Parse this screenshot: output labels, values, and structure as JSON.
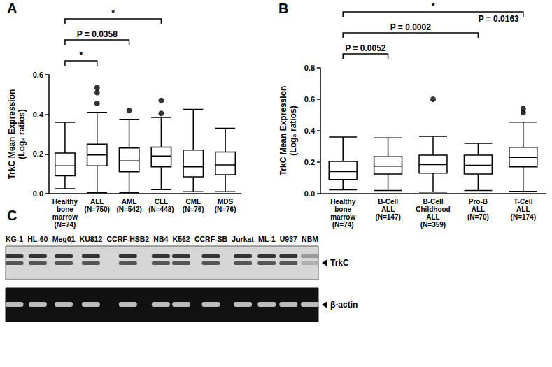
{
  "chart_data": [
    {
      "type": "boxplot",
      "title": "A",
      "ylabel": "TrkC Mean Expression\n(Log₂ ratios)",
      "categories": [
        "Healthy\nbone\nmarrow\n(N=74)",
        "ALL\n(N=750)",
        "AML\n(N=542)",
        "CLL\n(N=448)",
        "CML\n(N=76)",
        "MDS\n(N=76)"
      ],
      "values": [
        [
          0.025,
          0.09,
          0.14,
          0.205,
          0.36
        ],
        [
          0.005,
          0.14,
          0.195,
          0.25,
          0.41
        ],
        [
          0.005,
          0.11,
          0.165,
          0.23,
          0.375
        ],
        [
          0.02,
          0.135,
          0.19,
          0.235,
          0.385
        ],
        [
          0.01,
          0.085,
          0.135,
          0.22,
          0.425
        ],
        [
          0.01,
          0.095,
          0.145,
          0.21,
          0.33
        ]
      ],
      "outliers": [
        [],
        [
          0.535,
          0.51,
          0.455
        ],
        [
          0.42
        ],
        [
          0.47,
          0.405
        ],
        [],
        []
      ],
      "color": "#000000",
      "marker": "circle",
      "ylim": [
        0,
        0.6
      ],
      "yticks": [
        {
          "value": 0,
          "label": "0.0"
        },
        0.2,
        0.4,
        0.6
      ],
      "annotations": [
        {
          "from": 0,
          "to": 1,
          "text": "*"
        },
        {
          "from": 0,
          "to": 2,
          "text": "P = 0.0358"
        },
        {
          "from": 0,
          "to": 3,
          "text": "*"
        }
      ]
    },
    {
      "type": "boxplot",
      "title": "B",
      "ylabel": "TrkC Mean Expression\n(Log₂ ratios)",
      "categories": [
        "Healthy\nbone\nmarrow\n(N=74)",
        "B-Cell\nALL\n(N=147)",
        "B-Cell\nChildhood\nALL\n(N=359)",
        "Pro-B\nALL\n(N=70)",
        "T-Cell\nALL\n(N=174)"
      ],
      "values": [
        [
          0.025,
          0.09,
          0.14,
          0.205,
          0.36
        ],
        [
          0.02,
          0.125,
          0.175,
          0.235,
          0.355
        ],
        [
          0.01,
          0.13,
          0.185,
          0.245,
          0.365
        ],
        [
          0.02,
          0.125,
          0.18,
          0.245,
          0.32
        ],
        [
          0.015,
          0.17,
          0.23,
          0.295,
          0.455
        ]
      ],
      "outliers": [
        [],
        [],
        [
          0.6
        ],
        [],
        [
          0.515,
          0.54
        ]
      ],
      "color": "#000000",
      "marker": "circle",
      "ylim": [
        0,
        0.8
      ],
      "yticks": [
        {
          "value": 0,
          "label": "0.0"
        },
        0.2,
        0.4,
        0.6,
        0.8
      ],
      "annotations": [
        {
          "from": 0,
          "to": 1,
          "text": "P = 0.0052"
        },
        {
          "from": 0,
          "to": 3,
          "text": "P = 0.0002"
        },
        {
          "from": 0,
          "to": 4,
          "text": "*",
          "note": "P = 0.0163"
        }
      ]
    }
  ],
  "blot": {
    "title": "C",
    "lanes": [
      "KG-1",
      "HL-60",
      "Meg01",
      "KU812",
      "CCRF-HSB2",
      "NB4",
      "K562",
      "CCRF-SB",
      "Jurkat",
      "ML-1",
      "U937",
      "NBM"
    ],
    "bands": [
      "TrkC",
      "β-actin"
    ]
  }
}
